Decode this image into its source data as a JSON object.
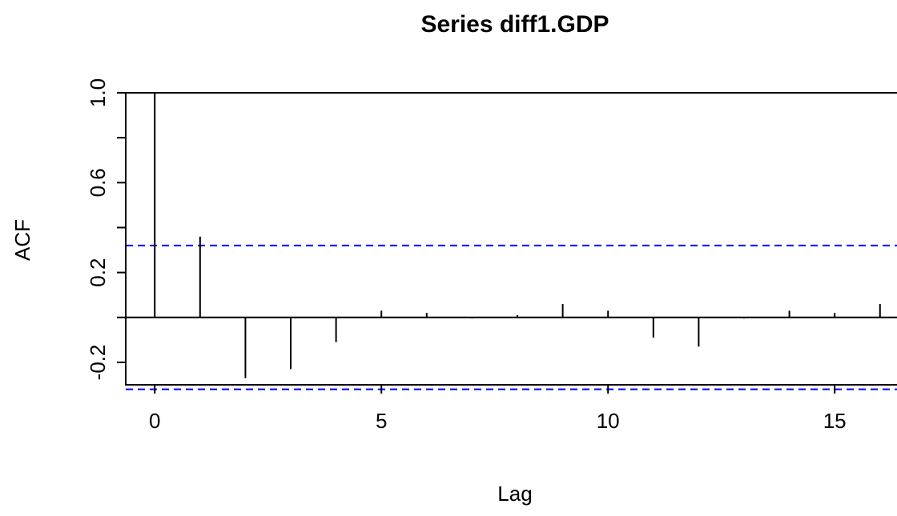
{
  "chart_data": {
    "type": "bar",
    "title": "Series  diff1.GDP",
    "xlabel": "Lag",
    "ylabel": "ACF",
    "x_ticks": [
      0,
      5,
      10,
      15
    ],
    "y_ticks": [
      "-0.2",
      "0.2",
      "0.6",
      "1.0"
    ],
    "xlim": [
      -0.64,
      16.64
    ],
    "ylim": [
      -0.3,
      1.0
    ],
    "series": [
      {
        "x": [
          0,
          1,
          2,
          3,
          4,
          5,
          6,
          7,
          8,
          9,
          10,
          11,
          12,
          13,
          14,
          15,
          16
        ],
        "values": [
          1.0,
          0.36,
          -0.27,
          -0.23,
          -0.11,
          0.03,
          0.02,
          -0.005,
          0.01,
          0.06,
          0.03,
          -0.09,
          -0.13,
          -0.005,
          0.03,
          0.02,
          0.06
        ]
      }
    ],
    "confidence_band": [
      0.32,
      -0.32
    ],
    "colors": {
      "lines": "#000000",
      "confidence": "#0000ff"
    }
  }
}
